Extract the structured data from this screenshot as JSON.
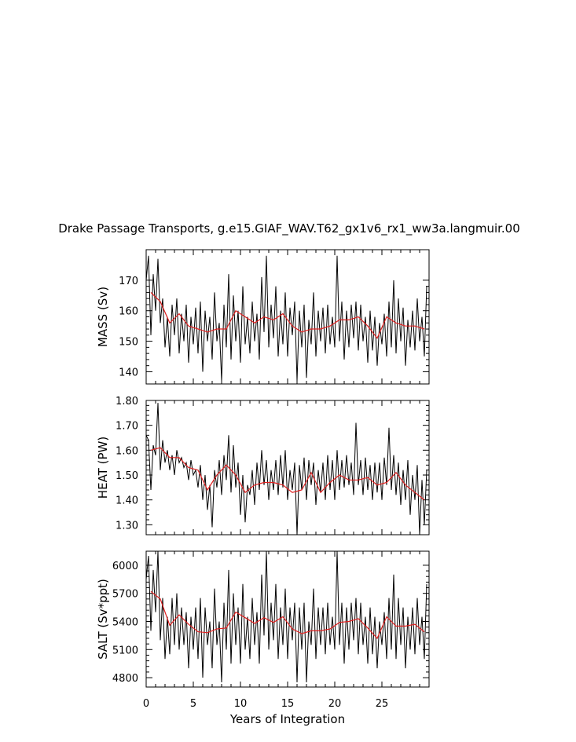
{
  "title": "Drake Passage Transports, g.e15.GIAF_WAV.T62_gx1v6_rx1_ww3a.langmuir.00",
  "xlabel": "Years of Integration",
  "xticks": [
    0,
    5,
    10,
    15,
    20,
    25
  ],
  "colors": {
    "monthly": "#000000",
    "annual": "#e02020",
    "axes": "#000000"
  },
  "chart_data": [
    {
      "type": "line",
      "ylabel": "MASS (Sv)",
      "xlim": [
        0,
        30
      ],
      "ylim": [
        136,
        180
      ],
      "yticks": [
        140,
        150,
        160,
        170
      ],
      "ytick_labels": [
        "140",
        "150",
        "160",
        "170"
      ],
      "x": [
        0.0,
        0.25,
        0.5,
        0.75,
        1.0,
        1.25,
        1.5,
        1.75,
        2.0,
        2.25,
        2.5,
        2.75,
        3.0,
        3.25,
        3.5,
        3.75,
        4.0,
        4.25,
        4.5,
        4.75,
        5.0,
        5.25,
        5.5,
        5.75,
        6.0,
        6.25,
        6.5,
        6.75,
        7.0,
        7.25,
        7.5,
        7.75,
        8.0,
        8.25,
        8.5,
        8.75,
        9.0,
        9.25,
        9.5,
        9.75,
        10.0,
        10.25,
        10.5,
        10.75,
        11.0,
        11.25,
        11.5,
        11.75,
        12.0,
        12.25,
        12.5,
        12.75,
        13.0,
        13.25,
        13.5,
        13.75,
        14.0,
        14.25,
        14.5,
        14.75,
        15.0,
        15.25,
        15.5,
        15.75,
        16.0,
        16.25,
        16.5,
        16.75,
        17.0,
        17.25,
        17.5,
        17.75,
        18.0,
        18.25,
        18.5,
        18.75,
        19.0,
        19.25,
        19.5,
        19.75,
        20.0,
        20.25,
        20.5,
        20.75,
        21.0,
        21.25,
        21.5,
        21.75,
        22.0,
        22.25,
        22.5,
        22.75,
        23.0,
        23.25,
        23.5,
        23.75,
        24.0,
        24.25,
        24.5,
        24.75,
        25.0,
        25.25,
        25.5,
        25.75,
        26.0,
        26.25,
        26.5,
        26.75,
        27.0,
        27.25,
        27.5,
        27.75,
        28.0,
        28.25,
        28.5,
        28.75,
        29.0,
        29.25,
        29.5,
        29.75
      ],
      "monthly": [
        170,
        178,
        152,
        172,
        160,
        177,
        156,
        164,
        148,
        158,
        145,
        162,
        152,
        164,
        146,
        159,
        150,
        162,
        143,
        158,
        149,
        161,
        146,
        163,
        140,
        160,
        150,
        158,
        144,
        166,
        150,
        156,
        137,
        162,
        148,
        172,
        144,
        165,
        150,
        160,
        143,
        168,
        149,
        158,
        146,
        163,
        150,
        159,
        144,
        171,
        153,
        178,
        148,
        162,
        151,
        168,
        145,
        160,
        149,
        166,
        145,
        161,
        152,
        163,
        137,
        160,
        148,
        162,
        138,
        157,
        149,
        166,
        145,
        160,
        150,
        161,
        146,
        162,
        149,
        158,
        148,
        178,
        150,
        163,
        144,
        160,
        148,
        162,
        151,
        163,
        147,
        162,
        150,
        158,
        143,
        160,
        147,
        158,
        142,
        156,
        149,
        159,
        145,
        163,
        148,
        170,
        146,
        164,
        150,
        161,
        142,
        157,
        148,
        160,
        147,
        164,
        150,
        158,
        145,
        168
      ],
      "annual_x": [
        0.5,
        1.5,
        2.5,
        3.5,
        4.5,
        5.5,
        6.5,
        7.5,
        8.5,
        9.5,
        10.5,
        11.5,
        12.5,
        13.5,
        14.5,
        15.5,
        16.5,
        17.5,
        18.5,
        19.5,
        20.5,
        21.5,
        22.5,
        23.5,
        24.5,
        25.5,
        26.5,
        27.5,
        28.5,
        29.5
      ],
      "annual": [
        166,
        163,
        156,
        159,
        155,
        154,
        153,
        154,
        154,
        160,
        158,
        156,
        158,
        157,
        159,
        155,
        153,
        154,
        154,
        155,
        157,
        157,
        158,
        155,
        151,
        158,
        156,
        155,
        155,
        154
      ]
    },
    {
      "type": "line",
      "ylabel": "HEAT (PW)",
      "xlim": [
        0,
        30
      ],
      "ylim": [
        1.26,
        1.8
      ],
      "yticks": [
        1.3,
        1.4,
        1.5,
        1.6,
        1.7,
        1.8
      ],
      "ytick_labels": [
        "1.30",
        "1.40",
        "1.50",
        "1.60",
        "1.70",
        "1.80"
      ],
      "x": [
        0.0,
        0.25,
        0.5,
        0.75,
        1.0,
        1.25,
        1.5,
        1.75,
        2.0,
        2.25,
        2.5,
        2.75,
        3.0,
        3.25,
        3.5,
        3.75,
        4.0,
        4.25,
        4.5,
        4.75,
        5.0,
        5.25,
        5.5,
        5.75,
        6.0,
        6.25,
        6.5,
        6.75,
        7.0,
        7.25,
        7.5,
        7.75,
        8.0,
        8.25,
        8.5,
        8.75,
        9.0,
        9.25,
        9.5,
        9.75,
        10.0,
        10.25,
        10.5,
        10.75,
        11.0,
        11.25,
        11.5,
        11.75,
        12.0,
        12.25,
        12.5,
        12.75,
        13.0,
        13.25,
        13.5,
        13.75,
        14.0,
        14.25,
        14.5,
        14.75,
        15.0,
        15.25,
        15.5,
        15.75,
        16.0,
        16.25,
        16.5,
        16.75,
        17.0,
        17.25,
        17.5,
        17.75,
        18.0,
        18.25,
        18.5,
        18.75,
        19.0,
        19.25,
        19.5,
        19.75,
        20.0,
        20.25,
        20.5,
        20.75,
        21.0,
        21.25,
        21.5,
        21.75,
        22.0,
        22.25,
        22.5,
        22.75,
        23.0,
        23.25,
        23.5,
        23.75,
        24.0,
        24.25,
        24.5,
        24.75,
        25.0,
        25.25,
        25.5,
        25.75,
        26.0,
        26.25,
        26.5,
        26.75,
        27.0,
        27.25,
        27.5,
        27.75,
        28.0,
        28.25,
        28.5,
        28.75,
        29.0,
        29.25,
        29.5,
        29.75
      ],
      "monthly": [
        1.66,
        1.64,
        1.44,
        1.62,
        1.58,
        1.79,
        1.52,
        1.64,
        1.55,
        1.6,
        1.52,
        1.58,
        1.5,
        1.6,
        1.55,
        1.57,
        1.53,
        1.55,
        1.48,
        1.56,
        1.5,
        1.52,
        1.45,
        1.54,
        1.4,
        1.5,
        1.36,
        1.46,
        1.29,
        1.52,
        1.45,
        1.56,
        1.42,
        1.58,
        1.48,
        1.66,
        1.43,
        1.62,
        1.45,
        1.55,
        1.34,
        1.5,
        1.31,
        1.46,
        1.42,
        1.52,
        1.38,
        1.55,
        1.44,
        1.6,
        1.46,
        1.56,
        1.4,
        1.52,
        1.44,
        1.56,
        1.42,
        1.58,
        1.45,
        1.6,
        1.4,
        1.52,
        1.44,
        1.55,
        1.26,
        1.54,
        1.44,
        1.57,
        1.4,
        1.56,
        1.46,
        1.55,
        1.38,
        1.52,
        1.43,
        1.55,
        1.4,
        1.58,
        1.44,
        1.56,
        1.4,
        1.6,
        1.44,
        1.56,
        1.45,
        1.58,
        1.46,
        1.55,
        1.42,
        1.71,
        1.46,
        1.56,
        1.42,
        1.57,
        1.44,
        1.54,
        1.4,
        1.55,
        1.43,
        1.55,
        1.4,
        1.57,
        1.46,
        1.69,
        1.44,
        1.58,
        1.42,
        1.55,
        1.38,
        1.52,
        1.4,
        1.56,
        1.34,
        1.5,
        1.4,
        1.54,
        1.26,
        1.48,
        1.3,
        1.52
      ],
      "annual_x": [
        0.5,
        1.5,
        2.5,
        3.5,
        4.5,
        5.5,
        6.5,
        7.5,
        8.5,
        9.5,
        10.5,
        11.5,
        12.5,
        13.5,
        14.5,
        15.5,
        16.5,
        17.5,
        18.5,
        19.5,
        20.5,
        21.5,
        22.5,
        23.5,
        24.5,
        25.5,
        26.5,
        27.5,
        28.5,
        29.5
      ],
      "annual": [
        1.6,
        1.61,
        1.57,
        1.57,
        1.53,
        1.52,
        1.44,
        1.5,
        1.54,
        1.5,
        1.43,
        1.46,
        1.47,
        1.47,
        1.46,
        1.43,
        1.44,
        1.51,
        1.43,
        1.47,
        1.5,
        1.48,
        1.48,
        1.49,
        1.46,
        1.47,
        1.51,
        1.46,
        1.43,
        1.4
      ]
    },
    {
      "type": "line",
      "ylabel": "SALT (Sv*ppt)",
      "xlim": [
        0,
        30
      ],
      "ylim": [
        4700,
        6150
      ],
      "yticks": [
        4800,
        5100,
        5400,
        5700,
        6000
      ],
      "ytick_labels": [
        "4800",
        "5100",
        "5400",
        "5700",
        "6000"
      ],
      "x": [
        0.0,
        0.25,
        0.5,
        0.75,
        1.0,
        1.25,
        1.5,
        1.75,
        2.0,
        2.25,
        2.5,
        2.75,
        3.0,
        3.25,
        3.5,
        3.75,
        4.0,
        4.25,
        4.5,
        4.75,
        5.0,
        5.25,
        5.5,
        5.75,
        6.0,
        6.25,
        6.5,
        6.75,
        7.0,
        7.25,
        7.5,
        7.75,
        8.0,
        8.25,
        8.5,
        8.75,
        9.0,
        9.25,
        9.5,
        9.75,
        10.0,
        10.25,
        10.5,
        10.75,
        11.0,
        11.25,
        11.5,
        11.75,
        12.0,
        12.25,
        12.5,
        12.75,
        13.0,
        13.25,
        13.5,
        13.75,
        14.0,
        14.25,
        14.5,
        14.75,
        15.0,
        15.25,
        15.5,
        15.75,
        16.0,
        16.25,
        16.5,
        16.75,
        17.0,
        17.25,
        17.5,
        17.75,
        18.0,
        18.25,
        18.5,
        18.75,
        19.0,
        19.25,
        19.5,
        19.75,
        20.0,
        20.25,
        20.5,
        20.75,
        21.0,
        21.25,
        21.5,
        21.75,
        22.0,
        22.25,
        22.5,
        22.75,
        23.0,
        23.25,
        23.5,
        23.75,
        24.0,
        24.25,
        24.5,
        24.75,
        25.0,
        25.25,
        25.5,
        25.75,
        26.0,
        26.25,
        26.5,
        26.75,
        27.0,
        27.25,
        27.5,
        27.75,
        28.0,
        28.25,
        28.5,
        28.75,
        29.0,
        29.25,
        29.5,
        29.75
      ],
      "monthly": [
        5850,
        6100,
        5300,
        5950,
        5500,
        6150,
        5200,
        5650,
        5000,
        5450,
        5050,
        5650,
        5150,
        5700,
        5100,
        5550,
        5150,
        5500,
        4900,
        5450,
        5100,
        5550,
        5000,
        5650,
        4800,
        5550,
        5150,
        5400,
        4900,
        5750,
        5150,
        5400,
        4750,
        5600,
        5100,
        5950,
        4950,
        5700,
        5150,
        5550,
        4950,
        5800,
        5100,
        5450,
        5000,
        5650,
        5150,
        5500,
        4950,
        5900,
        5250,
        6150,
        5100,
        5600,
        5200,
        5800,
        5000,
        5550,
        5150,
        5750,
        5000,
        5550,
        5200,
        5600,
        4750,
        5550,
        5100,
        5600,
        4750,
        5400,
        5150,
        5750,
        5000,
        5550,
        5150,
        5550,
        5050,
        5600,
        5150,
        5450,
        5100,
        6150,
        5150,
        5600,
        4950,
        5550,
        5100,
        5600,
        5200,
        5650,
        5050,
        5600,
        5150,
        5450,
        4950,
        5550,
        5050,
        5450,
        4900,
        5400,
        5150,
        5500,
        5000,
        5650,
        5100,
        5900,
        5000,
        5650,
        5150,
        5550,
        4900,
        5450,
        5100,
        5550,
        5050,
        5650,
        5150,
        5450,
        5000,
        5800
      ],
      "annual_x": [
        0.5,
        1.5,
        2.5,
        3.5,
        4.5,
        5.5,
        6.5,
        7.5,
        8.5,
        9.5,
        10.5,
        11.5,
        12.5,
        13.5,
        14.5,
        15.5,
        16.5,
        17.5,
        18.5,
        19.5,
        20.5,
        21.5,
        22.5,
        23.5,
        24.5,
        25.5,
        26.5,
        27.5,
        28.5,
        29.5
      ],
      "annual": [
        5720,
        5640,
        5360,
        5470,
        5370,
        5290,
        5280,
        5320,
        5330,
        5500,
        5440,
        5380,
        5440,
        5390,
        5450,
        5320,
        5270,
        5300,
        5300,
        5320,
        5390,
        5400,
        5430,
        5330,
        5220,
        5450,
        5350,
        5350,
        5370,
        5290
      ]
    }
  ]
}
